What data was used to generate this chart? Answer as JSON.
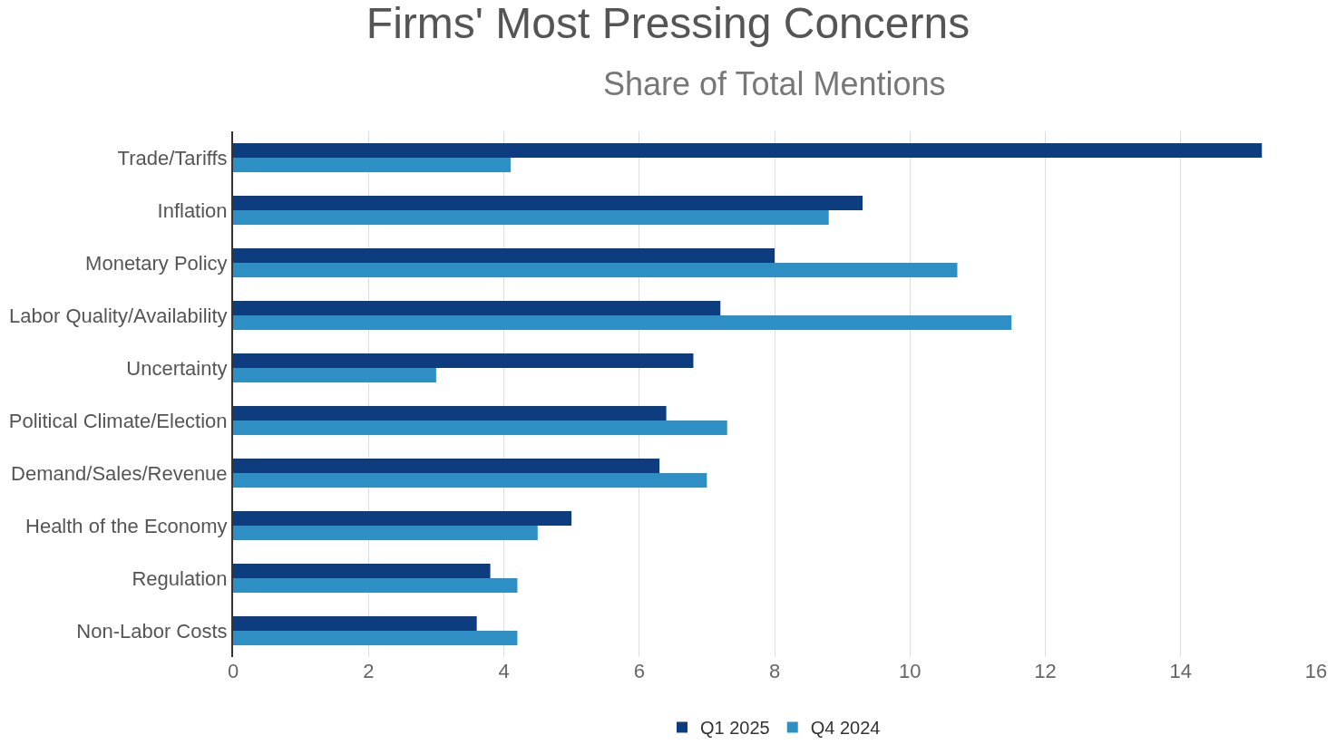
{
  "chart_data": {
    "type": "bar",
    "orientation": "horizontal",
    "title": "Firms' Most Pressing Concerns",
    "subtitle": "Share of Total Mentions",
    "categories": [
      "Trade/Tariffs",
      "Inflation",
      "Monetary Policy",
      "Labor Quality/Availability",
      "Uncertainty",
      "Political Climate/Election",
      "Demand/Sales/Revenue",
      "Health of the Economy",
      "Regulation",
      "Non-Labor Costs"
    ],
    "series": [
      {
        "name": "Q1 2025",
        "color": "#0d3d7e",
        "values": [
          15.2,
          9.3,
          8.0,
          7.2,
          6.8,
          6.4,
          6.3,
          5.0,
          3.8,
          3.6
        ]
      },
      {
        "name": "Q4 2024",
        "color": "#2e8fc5",
        "values": [
          4.1,
          8.8,
          10.7,
          11.5,
          3.0,
          7.3,
          7.0,
          4.5,
          4.2,
          4.2
        ]
      }
    ],
    "xlim": [
      0,
      16
    ],
    "xticks": [
      0,
      2,
      4,
      6,
      8,
      10,
      12,
      14,
      16
    ],
    "grid": "x",
    "legend": "bottom"
  }
}
